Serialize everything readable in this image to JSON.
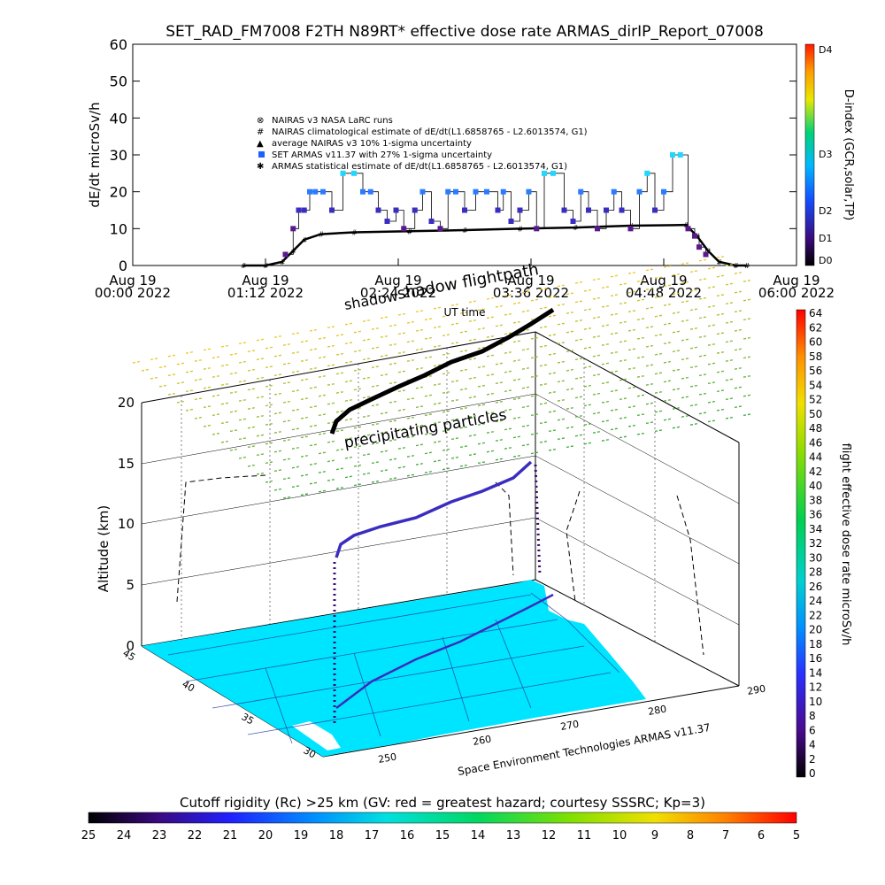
{
  "title": "SET_RAD_FM7008  F2TH N89RT* effective dose rate ARMAS_dirIP_Report_07008",
  "colors": {
    "armas": "#1e90ff",
    "nairas_clim": "#000000",
    "flight_path_surface": "#3a2dbf",
    "land": "#00e5ff",
    "background": "#ffffff"
  },
  "chart_data": [
    {
      "type": "line",
      "title": "SET_RAD_FM7008  F2TH N89RT* effective dose rate ARMAS_dirIP_Report_07008",
      "ylabel": "dE/dt microSv/h",
      "ylim": [
        0,
        60
      ],
      "yticks": [
        "0",
        "10",
        "20",
        "30",
        "40",
        "50",
        "60"
      ],
      "xticks": [
        {
          "l1": "Aug 19",
          "l2": "00:00 2022"
        },
        {
          "l1": "Aug 19",
          "l2": "01:12 2022"
        },
        {
          "l1": "Aug 19",
          "l2": "02:24 2022"
        },
        {
          "l1": "Aug 19",
          "l2": "03:36 2022"
        },
        {
          "l1": "Aug 19",
          "l2": "04:48 2022"
        },
        {
          "l1": "Aug 19",
          "l2": "06:00 2022"
        }
      ],
      "xlim_hours": [
        0,
        6
      ],
      "xlabel": "UT time",
      "right_axis": {
        "label": "D-index (GCR,solar,TP)",
        "ticks": [
          "D0",
          "D1",
          "D2",
          "D3",
          "D4"
        ]
      },
      "legend": [
        "NAIRAS v3 NASA LaRC runs",
        "NAIRAS climatological estimate of dE/dt(L1.6858765 - L2.6013574, G1)",
        "average NAIRAS v3 10% 1-sigma uncertainty",
        "SET ARMAS v11.37 with 27% 1-sigma uncertainty",
        "ARMAS statistical estimate of dE/dt(L1.6858765 - L2.6013574, G1)"
      ],
      "series": [
        {
          "name": "SET ARMAS v11.37 with 27% 1-sigma uncertainty",
          "x": [
            1.38,
            1.45,
            1.5,
            1.55,
            1.6,
            1.65,
            1.72,
            1.8,
            1.9,
            2.0,
            2.08,
            2.15,
            2.22,
            2.3,
            2.38,
            2.45,
            2.55,
            2.62,
            2.7,
            2.78,
            2.85,
            2.92,
            3.0,
            3.1,
            3.2,
            3.3,
            3.35,
            3.42,
            3.5,
            3.58,
            3.65,
            3.72,
            3.8,
            3.9,
            3.98,
            4.05,
            4.12,
            4.2,
            4.28,
            4.35,
            4.42,
            4.5,
            4.58,
            4.65,
            4.72,
            4.8,
            4.88,
            4.95,
            5.02,
            5.08,
            5.12,
            5.18
          ],
          "y": [
            3,
            10,
            15,
            15,
            20,
            20,
            20,
            15,
            25,
            25,
            20,
            20,
            15,
            12,
            15,
            10,
            15,
            20,
            12,
            10,
            20,
            20,
            15,
            20,
            20,
            15,
            20,
            12,
            15,
            20,
            10,
            25,
            25,
            15,
            12,
            20,
            15,
            10,
            15,
            20,
            15,
            10,
            20,
            25,
            15,
            20,
            30,
            30,
            10,
            8,
            5,
            3
          ]
        },
        {
          "name": "NAIRAS climatological estimate of dE/dt(L1.6858765 - L2.6013574, G1)",
          "x": [
            1.0,
            1.2,
            1.35,
            1.45,
            1.55,
            1.7,
            2.0,
            2.5,
            3.0,
            3.5,
            4.0,
            4.5,
            5.0,
            5.1,
            5.2,
            5.3,
            5.45,
            5.55
          ],
          "y": [
            0,
            0,
            1,
            4,
            7,
            8.5,
            9,
            9.3,
            9.6,
            10,
            10.3,
            10.8,
            11,
            8,
            4,
            1,
            0,
            0
          ]
        }
      ]
    },
    {
      "type": "scatter",
      "title": "",
      "xlabel": "UT time",
      "zlabel": "Altitude (km)",
      "zlim": [
        0,
        20
      ],
      "zticks": [
        "0",
        "5",
        "10",
        "15",
        "20"
      ],
      "lat_ticks": [
        "45",
        "40",
        "35",
        "30"
      ],
      "lon_ticks": [
        "250",
        "260",
        "270",
        "280",
        "290"
      ],
      "annotations": [
        "shadow flightpath",
        "shadow",
        "precipitating particles"
      ],
      "credit": "Space Environment Technologies ARMAS v11.37",
      "colorbar": {
        "label": "flight effective dose rate microSv/h",
        "min": 0,
        "max": 64,
        "ticks": [
          "0",
          "2",
          "4",
          "6",
          "8",
          "10",
          "12",
          "14",
          "16",
          "18",
          "20",
          "22",
          "24",
          "26",
          "28",
          "30",
          "32",
          "34",
          "36",
          "38",
          "40",
          "42",
          "44",
          "46",
          "48",
          "50",
          "52",
          "54",
          "56",
          "58",
          "60",
          "62",
          "64"
        ]
      }
    },
    {
      "type": "heatmap",
      "title": "Cutoff rigidity (Rc) >25 km (GV: red = greatest hazard; courtesy SSSRC; Kp=3)",
      "ticks": [
        "25",
        "24",
        "23",
        "22",
        "21",
        "20",
        "19",
        "18",
        "17",
        "16",
        "15",
        "14",
        "13",
        "12",
        "11",
        "10",
        "9",
        "8",
        "7",
        "6",
        "5"
      ]
    }
  ]
}
